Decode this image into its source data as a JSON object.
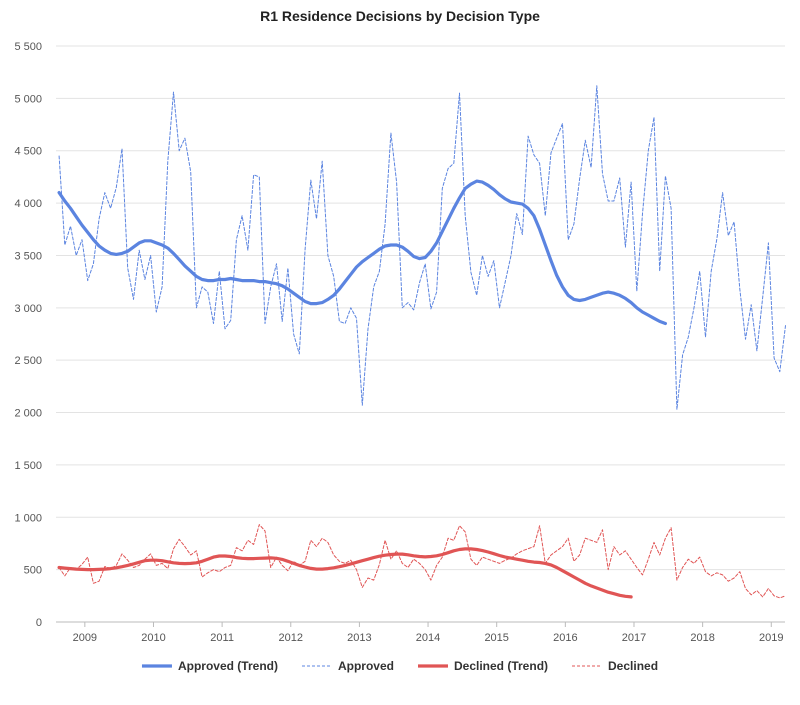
{
  "chart_data": {
    "type": "line",
    "title": "R1 Residence Decisions by Decision Type",
    "xlabel": "",
    "ylabel": "",
    "ylim": [
      0,
      5500
    ],
    "y_ticks": [
      0,
      500,
      1000,
      1500,
      2000,
      2500,
      3000,
      3500,
      4000,
      4500,
      5000,
      5500
    ],
    "y_tick_labels": [
      "0",
      "500",
      "1 000",
      "1 500",
      "2 000",
      "2 500",
      "3 000",
      "3 500",
      "4 000",
      "4 500",
      "5 000",
      "5 500"
    ],
    "x_range": [
      2008.58,
      2019.2
    ],
    "x_ticks": [
      2009,
      2010,
      2011,
      2012,
      2013,
      2014,
      2015,
      2016,
      2017,
      2018,
      2019
    ],
    "x_tick_labels": [
      "2009",
      "2010",
      "2011",
      "2012",
      "2013",
      "2014",
      "2015",
      "2016",
      "2017",
      "2018",
      "2019"
    ],
    "legend_position": "bottom",
    "x_start": 2008.625,
    "x_step": 0.08333,
    "series": [
      {
        "name": "Approved (Trend)",
        "style": "solid",
        "color": "#5b84e0",
        "values": [
          4100,
          4020,
          3950,
          3870,
          3790,
          3720,
          3650,
          3590,
          3550,
          3520,
          3510,
          3520,
          3540,
          3580,
          3620,
          3640,
          3640,
          3620,
          3600,
          3570,
          3520,
          3460,
          3400,
          3350,
          3300,
          3270,
          3260,
          3260,
          3270,
          3270,
          3280,
          3270,
          3260,
          3260,
          3260,
          3250,
          3250,
          3240,
          3230,
          3210,
          3180,
          3140,
          3100,
          3060,
          3040,
          3040,
          3050,
          3080,
          3120,
          3180,
          3250,
          3320,
          3390,
          3440,
          3480,
          3520,
          3560,
          3590,
          3600,
          3600,
          3580,
          3540,
          3490,
          3470,
          3480,
          3540,
          3620,
          3730,
          3840,
          3950,
          4050,
          4140,
          4180,
          4210,
          4200,
          4170,
          4130,
          4080,
          4040,
          4010,
          4000,
          3990,
          3950,
          3880,
          3750,
          3600,
          3450,
          3310,
          3200,
          3120,
          3080,
          3070,
          3080,
          3100,
          3120,
          3140,
          3150,
          3140,
          3120,
          3090,
          3050,
          3000,
          2960,
          2930,
          2900,
          2870,
          2850
        ]
      },
      {
        "name": "Approved",
        "style": "dashed",
        "color": "#5b84e0",
        "values": [
          4450,
          3600,
          3780,
          3500,
          3650,
          3260,
          3420,
          3850,
          4100,
          3950,
          4150,
          4520,
          3380,
          3080,
          3550,
          3270,
          3500,
          2960,
          3200,
          4400,
          5060,
          4500,
          4620,
          4300,
          3000,
          3200,
          3150,
          2850,
          3350,
          2800,
          2880,
          3650,
          3880,
          3550,
          4270,
          4250,
          2850,
          3200,
          3420,
          2870,
          3380,
          2750,
          2560,
          3560,
          4220,
          3850,
          4400,
          3500,
          3300,
          2870,
          2850,
          3000,
          2900,
          2070,
          2800,
          3200,
          3350,
          3800,
          4670,
          4200,
          3000,
          3050,
          2980,
          3240,
          3420,
          2990,
          3150,
          4140,
          4330,
          4380,
          5050,
          3880,
          3340,
          3120,
          3500,
          3300,
          3450,
          3000,
          3250,
          3500,
          3900,
          3700,
          4640,
          4460,
          4380,
          3880,
          4480,
          4620,
          4760,
          3650,
          3800,
          4230,
          4600,
          4340,
          5120,
          4280,
          4020,
          4020,
          4240,
          3580,
          4200,
          3160,
          3900,
          4500,
          4820,
          3350,
          4260,
          3950,
          2030,
          2550,
          2720,
          3000,
          3350,
          2720,
          3350,
          3660,
          4100,
          3690,
          3820,
          3180,
          2700,
          3030,
          2590,
          3100,
          3620,
          2520,
          2390,
          2830
        ]
      },
      {
        "name": "Declined (Trend)",
        "style": "solid",
        "color": "#e05555",
        "values": [
          520,
          515,
          510,
          505,
          502,
          500,
          500,
          502,
          505,
          510,
          518,
          528,
          540,
          555,
          570,
          585,
          590,
          590,
          585,
          575,
          565,
          560,
          558,
          560,
          565,
          580,
          600,
          620,
          630,
          630,
          625,
          615,
          608,
          605,
          605,
          608,
          610,
          612,
          608,
          598,
          580,
          560,
          540,
          525,
          512,
          505,
          505,
          510,
          518,
          528,
          540,
          555,
          570,
          585,
          600,
          615,
          628,
          638,
          645,
          648,
          648,
          642,
          632,
          625,
          622,
          625,
          632,
          645,
          662,
          680,
          692,
          698,
          698,
          692,
          682,
          668,
          652,
          635,
          620,
          610,
          600,
          590,
          580,
          572,
          568,
          560,
          545,
          520,
          490,
          460,
          430,
          400,
          370,
          345,
          325,
          305,
          285,
          270,
          255,
          245,
          240
        ]
      },
      {
        "name": "Declined",
        "style": "dashed",
        "color": "#e05555",
        "values": [
          520,
          440,
          520,
          500,
          550,
          620,
          370,
          390,
          530,
          510,
          540,
          650,
          590,
          520,
          540,
          600,
          650,
          540,
          560,
          510,
          700,
          790,
          720,
          640,
          680,
          430,
          470,
          500,
          480,
          520,
          540,
          710,
          680,
          780,
          740,
          930,
          870,
          520,
          620,
          540,
          490,
          580,
          540,
          580,
          780,
          720,
          800,
          760,
          640,
          580,
          560,
          590,
          500,
          330,
          420,
          400,
          550,
          780,
          600,
          680,
          560,
          520,
          600,
          560,
          500,
          400,
          540,
          620,
          800,
          780,
          920,
          860,
          600,
          540,
          620,
          600,
          580,
          560,
          590,
          610,
          650,
          680,
          700,
          720,
          920,
          560,
          640,
          680,
          720,
          800,
          580,
          640,
          800,
          780,
          760,
          880,
          500,
          720,
          640,
          680,
          600,
          520,
          450,
          600,
          760,
          640,
          800,
          900,
          400,
          520,
          600,
          560,
          620,
          480,
          440,
          470,
          450,
          390,
          420,
          480,
          320,
          260,
          300,
          240,
          320,
          250,
          230,
          250
        ]
      }
    ]
  }
}
